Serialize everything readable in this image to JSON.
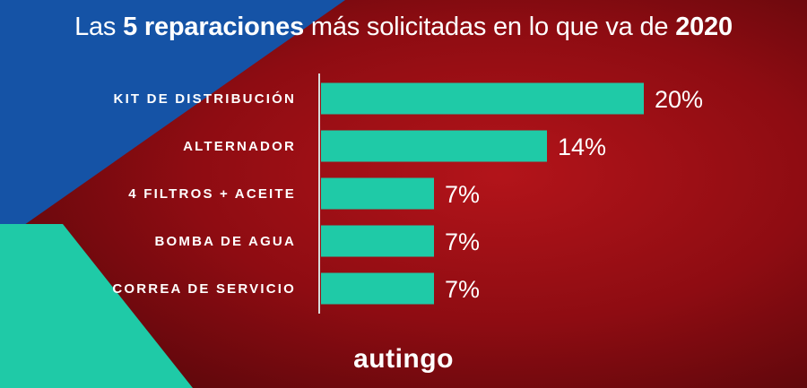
{
  "title": {
    "prefix": "Las ",
    "bold1": "5 reparaciones",
    "middle": " más solicitadas en lo que va de ",
    "bold2": "2020"
  },
  "chart_data": {
    "type": "bar",
    "orientation": "horizontal",
    "title": "Las 5 reparaciones más solicitadas en lo que va de 2020",
    "categories": [
      "KIT DE DISTRIBUCIÓN",
      "ALTERNADOR",
      "4 FILTROS + ACEITE",
      "BOMBA DE AGUA",
      "CORREA DE SERVICIO"
    ],
    "values": [
      20,
      14,
      7,
      7,
      7
    ],
    "value_labels": [
      "20%",
      "14%",
      "7%",
      "7%",
      "7%"
    ],
    "unit": "%",
    "xlim": [
      0,
      20
    ],
    "bar_color": "#1fcaa7",
    "grid": false
  },
  "logo": {
    "part1": "autin",
    "part2": "go"
  },
  "colors": {
    "blue": "#1553a6",
    "teal": "#1fcaa7",
    "red": "#7d0a0e"
  }
}
